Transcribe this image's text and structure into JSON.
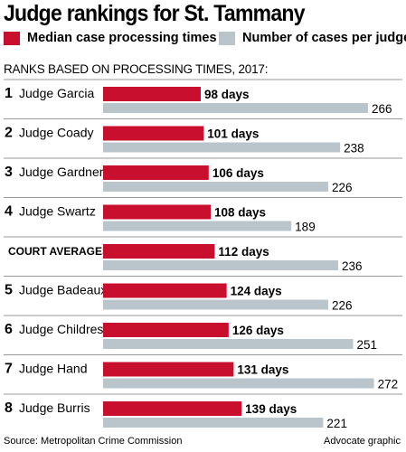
{
  "title": "Judge rankings for St. Tammany",
  "legend": {
    "median": "Median case processing times",
    "cases": "Number of cases per judge"
  },
  "subhead": "RANKS BASED ON PROCESSING TIMES, 2017:",
  "colors": {
    "median": "#c8102e",
    "cases": "#b9c4cb",
    "rule": "#999999"
  },
  "source": "Source: Metropolitan Crime Commission",
  "credit": "Advocate graphic",
  "chart_data": {
    "type": "bar",
    "categories": [
      "Judge Garcia",
      "Judge Coady",
      "Judge Gardner",
      "Judge Swartz",
      "COURT AVERAGES",
      "Judge Badeaux",
      "Judge Childress",
      "Judge Hand",
      "Judge Burris"
    ],
    "ranks": [
      "1",
      "2",
      "3",
      "4",
      "",
      "5",
      "6",
      "7",
      "8"
    ],
    "series": [
      {
        "name": "Median case processing times",
        "values": [
          98,
          101,
          106,
          108,
          112,
          124,
          126,
          131,
          139
        ],
        "labels": [
          "98 days",
          "101 days",
          "106 days",
          "108 days",
          "112 days",
          "124 days",
          "126 days",
          "131 days",
          "139 days"
        ]
      },
      {
        "name": "Number of cases per judge",
        "values": [
          266,
          238,
          226,
          189,
          236,
          226,
          251,
          272,
          221
        ],
        "labels": [
          "266",
          "238",
          "226",
          "189",
          "236",
          "226",
          "251",
          "272",
          "221"
        ]
      }
    ]
  }
}
